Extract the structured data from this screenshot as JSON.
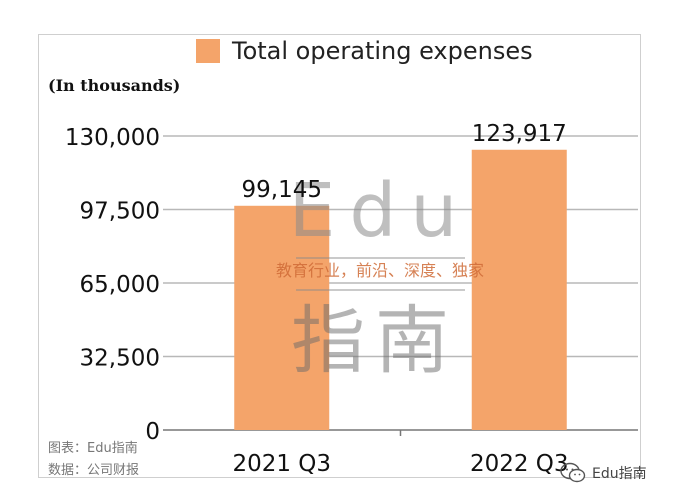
{
  "chart_data": {
    "type": "bar",
    "categories": [
      "2021 Q3",
      "2022 Q3"
    ],
    "series": [
      {
        "name": "Total operating expenses",
        "values": [
          99145,
          123917
        ],
        "labels": [
          "99,145",
          "123,917"
        ]
      }
    ],
    "yticks": [
      0,
      32500,
      65000,
      97500,
      130000
    ],
    "ytick_labels": [
      "0",
      "32,500",
      "65,000",
      "97,500",
      "130,000"
    ],
    "ylim": [
      0,
      130000
    ],
    "unit_label": "(In thousands)",
    "grid": true,
    "legend_position": "top",
    "bar_color": "#F4A46A"
  },
  "credits": {
    "line1": "图表：Edu指南",
    "line2": "数据：公司财报"
  },
  "watermark": {
    "title": "Edu",
    "slogan": "教育行业，前沿、深度、独家",
    "name": "指南"
  },
  "wechat": {
    "label": "Edu指南",
    "icon": "wechat-icon"
  }
}
